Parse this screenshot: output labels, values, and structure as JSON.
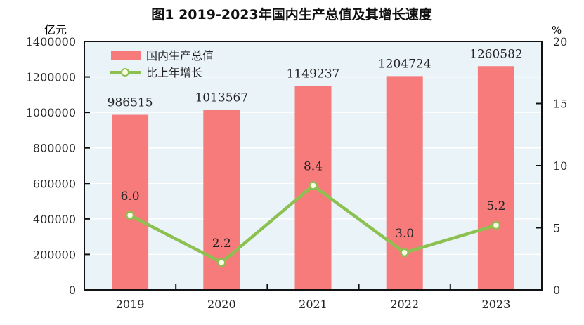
{
  "chart_data": {
    "type": "bar+line",
    "title": "图1   2019-2023年国内生产总值及其增长速度",
    "categories": [
      "2019",
      "2020",
      "2021",
      "2022",
      "2023"
    ],
    "series": [
      {
        "name": "国内生产总值",
        "type": "bar",
        "axis": "left",
        "values": [
          986515,
          1013567,
          1149237,
          1204724,
          1260582
        ],
        "labels": [
          "986515",
          "1013567",
          "1149237",
          "1204724",
          "1260582"
        ]
      },
      {
        "name": "比上年增长",
        "type": "line",
        "axis": "right",
        "values": [
          6.0,
          2.2,
          8.4,
          3.0,
          5.2
        ],
        "labels": [
          "6.0",
          "2.2",
          "8.4",
          "3.0",
          "5.2"
        ]
      }
    ],
    "left_axis": {
      "unit": "亿元",
      "ylim": [
        0,
        1400000
      ],
      "ticks": [
        "0",
        "200000",
        "400000",
        "600000",
        "800000",
        "1000000",
        "1200000",
        "1400000"
      ]
    },
    "right_axis": {
      "unit": "%",
      "ylim": [
        0,
        20
      ],
      "ticks": [
        "0",
        "5",
        "10",
        "15",
        "20"
      ]
    },
    "grid": true,
    "legend": "top-left",
    "colors": {
      "bar": "#f77b7b",
      "line": "#8cc152",
      "plot_bg": "#eaf3f8",
      "grid": "#ffffff"
    }
  }
}
